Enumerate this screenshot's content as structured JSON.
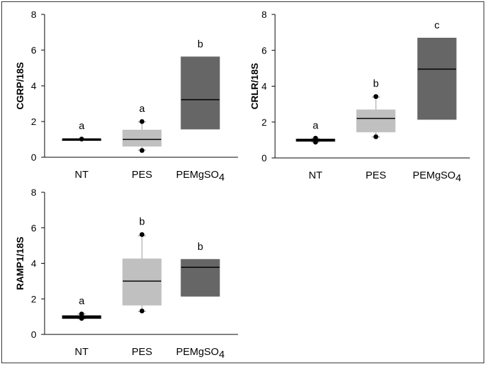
{
  "chart_data": [
    {
      "type": "box",
      "ylabel": "CGRP/18S",
      "ylim": [
        0,
        8
      ],
      "yticks": [
        "0",
        "2",
        "4",
        "6",
        "8"
      ],
      "categories": [
        {
          "main": "NT",
          "sub": ""
        },
        {
          "main": "PES",
          "sub": ""
        },
        {
          "main": "PEMgSO",
          "sub": "4"
        }
      ],
      "boxes": [
        {
          "q1": 0.95,
          "median": 1.0,
          "q3": 1.02,
          "wlo": 0.96,
          "whi": 1.04,
          "outliers": [
            1.02
          ],
          "color": "#000000"
        },
        {
          "q1": 0.62,
          "median": 1.0,
          "q3": 1.52,
          "wlo": 0.4,
          "whi": 1.98,
          "outliers": [
            2.0,
            0.38
          ],
          "color": "#c0c0c0"
        },
        {
          "q1": 1.58,
          "median": 3.22,
          "q3": 5.62,
          "wlo": null,
          "whi": null,
          "outliers": [],
          "color": "#666666"
        }
      ],
      "letters": [
        "a",
        "a",
        "b"
      ]
    },
    {
      "type": "box",
      "ylabel": "CRLR/18S",
      "ylim": [
        0,
        8
      ],
      "yticks": [
        "0",
        "2",
        "4",
        "6",
        "8"
      ],
      "categories": [
        {
          "main": "NT",
          "sub": ""
        },
        {
          "main": "PES",
          "sub": ""
        },
        {
          "main": "PEMgSO",
          "sub": "4"
        }
      ],
      "boxes": [
        {
          "q1": 0.93,
          "median": 1.0,
          "q3": 1.05,
          "wlo": 0.88,
          "whi": 1.1,
          "outliers": [
            0.88,
            1.1
          ],
          "color": "#000000"
        },
        {
          "q1": 1.45,
          "median": 2.2,
          "q3": 2.68,
          "wlo": 1.18,
          "whi": 3.4,
          "outliers": [
            3.42,
            1.18
          ],
          "color": "#c0c0c0"
        },
        {
          "q1": 2.15,
          "median": 4.95,
          "q3": 6.68,
          "wlo": null,
          "whi": null,
          "outliers": [],
          "color": "#666666"
        }
      ],
      "letters": [
        "a",
        "b",
        "c"
      ]
    },
    {
      "type": "box",
      "ylabel": "RAMP1/18S",
      "ylim": [
        0,
        8
      ],
      "yticks": [
        "0",
        "2",
        "4",
        "6",
        "8"
      ],
      "categories": [
        {
          "main": "NT",
          "sub": ""
        },
        {
          "main": "PES",
          "sub": ""
        },
        {
          "main": "PEMgSO",
          "sub": "4"
        }
      ],
      "boxes": [
        {
          "q1": 0.9,
          "median": 0.98,
          "q3": 1.05,
          "wlo": 0.88,
          "whi": 1.15,
          "outliers": [
            1.15,
            0.9
          ],
          "color": "#000000"
        },
        {
          "q1": 1.65,
          "median": 3.0,
          "q3": 4.25,
          "wlo": 1.3,
          "whi": 5.55,
          "outliers": [
            5.62,
            1.32
          ],
          "color": "#c0c0c0"
        },
        {
          "q1": 2.15,
          "median": 3.78,
          "q3": 4.22,
          "wlo": null,
          "whi": null,
          "outliers": [],
          "color": "#666666"
        }
      ],
      "letters": [
        "a",
        "b",
        "b"
      ]
    }
  ]
}
